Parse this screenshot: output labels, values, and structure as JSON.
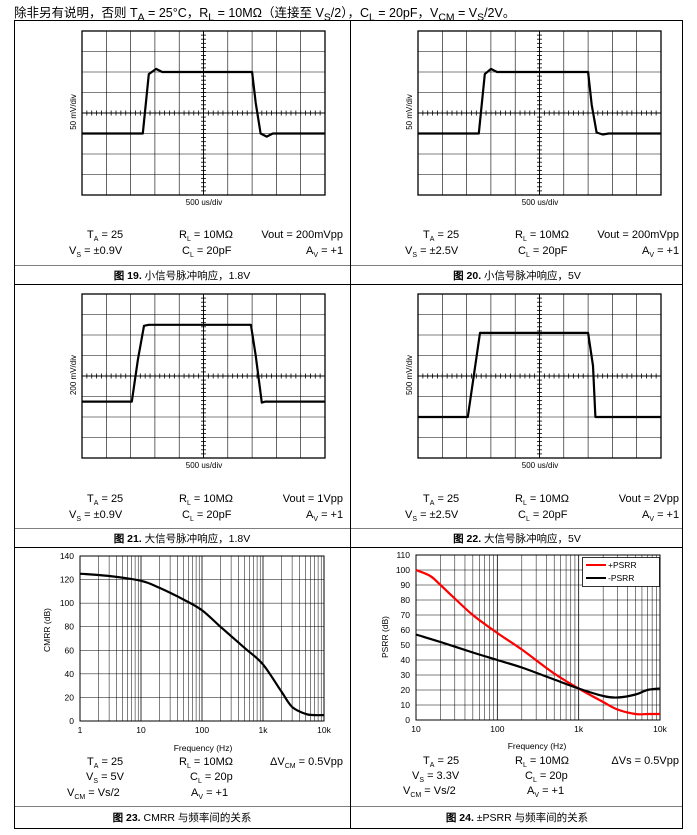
{
  "header": {
    "prefix": "除非另有说明，否则 ",
    "ta": "T",
    "ta_sub": "A",
    "ta_val": " = 25°C，",
    "rl": "R",
    "rl_sub": "L",
    "rl_val": " = 10MΩ（连接至 V",
    "vs_sub": "S",
    "rl_tail": "/2），C",
    "cl_sub": "L",
    "cl_val": " = 20pF，V",
    "vcm_sub": "CM",
    "vcm_val": " = V",
    "vcm_s_sub": "S",
    "vcm_tail": "/2V。"
  },
  "panels": [
    {
      "caption_num": "图 19.",
      "caption_text": " 小信号脉冲响应，1.8V",
      "ylabel": "50 mV/div",
      "xlabel": "500 us/div",
      "params": {
        "ta": "T",
        "ta_sub": "A",
        "ta_val": " = 25",
        "rl": "R",
        "rl_sub": "L",
        "rl_val": " = 10MΩ",
        "out": "Vout = 200mVpp",
        "vs": "V",
        "vs_sub": "S",
        "vs_val": " = ±0.9V",
        "cl": "C",
        "cl_sub": "L",
        "cl_val": " = 20pF",
        "av": "A",
        "av_sub": "V",
        "av_val": " = +1"
      }
    },
    {
      "caption_num": "图 20.",
      "caption_text": " 小信号脉冲响应，5V",
      "ylabel": "50 mV/div",
      "xlabel": "500 us/div",
      "params": {
        "ta": "T",
        "ta_sub": "A",
        "ta_val": " = 25",
        "rl": "R",
        "rl_sub": "L",
        "rl_val": " = 10MΩ",
        "out": "Vout = 200mVpp",
        "vs": "V",
        "vs_sub": "S",
        "vs_val": " = ±2.5V",
        "cl": "C",
        "cl_sub": "L",
        "cl_val": " = 20pF",
        "av": "A",
        "av_sub": "V",
        "av_val": " = +1"
      }
    },
    {
      "caption_num": "图 21.",
      "caption_text": " 大信号脉冲响应，1.8V",
      "ylabel": "200 mV/div",
      "xlabel": "500 us/div",
      "params": {
        "ta": "T",
        "ta_sub": "A",
        "ta_val": " = 25",
        "rl": "R",
        "rl_sub": "L",
        "rl_val": " = 10MΩ",
        "out": "Vout = 1Vpp",
        "vs": "V",
        "vs_sub": "S",
        "vs_val": " = ±0.9V",
        "cl": "C",
        "cl_sub": "L",
        "cl_val": " = 20pF",
        "av": "A",
        "av_sub": "V",
        "av_val": " = +1"
      }
    },
    {
      "caption_num": "图 22.",
      "caption_text": " 大信号脉冲响应，5V",
      "ylabel": "500 mV/div",
      "xlabel": "500 us/div",
      "params": {
        "ta": "T",
        "ta_sub": "A",
        "ta_val": " = 25",
        "rl": "R",
        "rl_sub": "L",
        "rl_val": " = 10MΩ",
        "out": "Vout = 2Vpp",
        "vs": "V",
        "vs_sub": "S",
        "vs_val": " = ±2.5V",
        "cl": "C",
        "cl_sub": "L",
        "cl_val": " = 20pF",
        "av": "A",
        "av_sub": "V",
        "av_val": " = +1"
      }
    },
    {
      "caption_num": "图 23.",
      "caption_text": " CMRR 与频率间的关系",
      "params": {
        "ta": "T",
        "ta_sub": "A",
        "ta_val": " = 25",
        "rl": "R",
        "rl_sub": "L",
        "rl_val": " = 10MΩ",
        "out": "ΔV",
        "out_sub": "CM",
        "out_val": " = 0.5Vpp",
        "vs": "V",
        "vs_sub": "S",
        "vs_val": " = 5V",
        "cl": "C",
        "cl_sub": "L",
        "cl_val": " = 20p",
        "vcm": "V",
        "vcm_sub": "CM",
        "vcm_val": " = Vs/2",
        "av": "A",
        "av_sub": "V",
        "av_val": " = +1"
      }
    },
    {
      "caption_num": "图 24.",
      "caption_text": " ±PSRR 与频率间的关系",
      "params": {
        "ta": "T",
        "ta_sub": "A",
        "ta_val": " = 25",
        "rl": "R",
        "rl_sub": "L",
        "rl_val": " = 10MΩ",
        "out": "ΔVs = 0.5Vpp",
        "vs": "V",
        "vs_sub": "S",
        "vs_val": " = 3.3V",
        "cl": "C",
        "cl_sub": "L",
        "cl_val": " = 20p",
        "vcm": "V",
        "vcm_sub": "CM",
        "vcm_val": " = Vs/2",
        "av": "A",
        "av_sub": "V",
        "av_val": " = +1"
      }
    }
  ],
  "chart_data": [
    {
      "id": "fig19",
      "type": "line",
      "title": "小信号脉冲响应，1.8V",
      "xlabel": "500 us/div",
      "ylabel": "50 mV/div",
      "xlim": [
        0,
        10
      ],
      "ylim": [
        -4,
        4
      ],
      "grid": true,
      "series": [
        {
          "name": "Vout",
          "color": "#000000",
          "x": [
            0,
            2.5,
            2.75,
            3.05,
            3.3,
            3.55,
            7.0,
            7.15,
            7.35,
            7.6,
            7.85,
            10
          ],
          "y": [
            -1.0,
            -1.0,
            1.9,
            2.15,
            2.0,
            2.0,
            2.0,
            0.5,
            -1.0,
            -1.15,
            -1.0,
            -1.0
          ]
        }
      ]
    },
    {
      "id": "fig20",
      "type": "line",
      "title": "小信号脉冲响应，5V",
      "xlabel": "500 us/div",
      "ylabel": "50 mV/div",
      "xlim": [
        0,
        10
      ],
      "ylim": [
        -4,
        4
      ],
      "grid": true,
      "series": [
        {
          "name": "Vout",
          "color": "#000000",
          "x": [
            0,
            2.5,
            2.75,
            3.0,
            3.25,
            3.5,
            7.0,
            7.15,
            7.35,
            7.6,
            7.85,
            10
          ],
          "y": [
            -1.0,
            -1.0,
            1.9,
            2.15,
            2.0,
            2.0,
            2.0,
            0.4,
            -0.95,
            -1.05,
            -1.0,
            -1.0
          ]
        }
      ]
    },
    {
      "id": "fig21",
      "type": "line",
      "title": "大信号脉冲响应，1.8V",
      "xlabel": "500 us/div",
      "ylabel": "200 mV/div",
      "xlim": [
        0,
        10
      ],
      "ylim": [
        -4,
        4
      ],
      "grid": true,
      "series": [
        {
          "name": "Vout",
          "color": "#000000",
          "x": [
            0,
            2.05,
            2.3,
            2.55,
            2.75,
            3.1,
            6.95,
            7.15,
            7.4,
            7.55,
            10
          ],
          "y": [
            -1.25,
            -1.25,
            0.8,
            2.45,
            2.5,
            2.5,
            2.5,
            1.0,
            -1.3,
            -1.25,
            -1.25
          ]
        }
      ]
    },
    {
      "id": "fig22",
      "type": "line",
      "title": "大信号脉冲响应，5V",
      "xlabel": "500 us/div",
      "ylabel": "500 mV/div",
      "xlim": [
        0,
        10
      ],
      "ylim": [
        -4,
        4
      ],
      "grid": true,
      "series": [
        {
          "name": "Vout",
          "color": "#000000",
          "x": [
            0,
            2.05,
            2.55,
            2.7,
            7.0,
            7.2,
            7.3,
            10
          ],
          "y": [
            -2.0,
            -2.0,
            2.1,
            2.1,
            2.1,
            0.5,
            -2.0,
            -2.0
          ]
        }
      ]
    },
    {
      "id": "fig23",
      "type": "line",
      "title": "CMRR 与频率间的关系",
      "xlabel": "Frequency (Hz)",
      "ylabel": "CMRR (dB)",
      "xscale": "log",
      "xlim": [
        1,
        10000
      ],
      "ylim": [
        0,
        140
      ],
      "xticks": [
        "1",
        "10",
        "100",
        "1k",
        "10k"
      ],
      "yticks": [
        0,
        20,
        40,
        60,
        80,
        100,
        120,
        140
      ],
      "grid": true,
      "series": [
        {
          "name": "CMRR",
          "color": "#000000",
          "x": [
            1,
            3,
            10,
            20,
            50,
            100,
            200,
            500,
            1000,
            2000,
            3000,
            5000,
            7000,
            10000
          ],
          "y": [
            125,
            123,
            119,
            113,
            103,
            94,
            80,
            62,
            48,
            25,
            12,
            6,
            5,
            5
          ]
        }
      ]
    },
    {
      "id": "fig24",
      "type": "line",
      "title": "±PSRR 与频率间的关系",
      "xlabel": "Frequency (Hz)",
      "ylabel": "PSRR (dB)",
      "xscale": "log",
      "xlim": [
        10,
        10000
      ],
      "ylim": [
        0,
        110
      ],
      "xticks": [
        "10",
        "100",
        "1k",
        "10k"
      ],
      "yticks": [
        0,
        10,
        20,
        30,
        40,
        50,
        60,
        70,
        80,
        90,
        100,
        110
      ],
      "grid": true,
      "legend": "top-right",
      "series": [
        {
          "name": "+PSRR",
          "color": "#ff0000",
          "x": [
            10,
            15,
            20,
            30,
            50,
            100,
            200,
            500,
            1000,
            2000,
            3000,
            5000,
            7000,
            10000
          ],
          "y": [
            100,
            96,
            90,
            81,
            70,
            58,
            47,
            31,
            21,
            12,
            7,
            4,
            4,
            4
          ]
        },
        {
          "name": "-PSRR",
          "color": "#000000",
          "x": [
            10,
            20,
            50,
            100,
            200,
            500,
            1000,
            2000,
            3000,
            5000,
            7000,
            10000
          ],
          "y": [
            57,
            52,
            45,
            40,
            35,
            27,
            21,
            16,
            15,
            17,
            20,
            21
          ]
        }
      ]
    }
  ]
}
